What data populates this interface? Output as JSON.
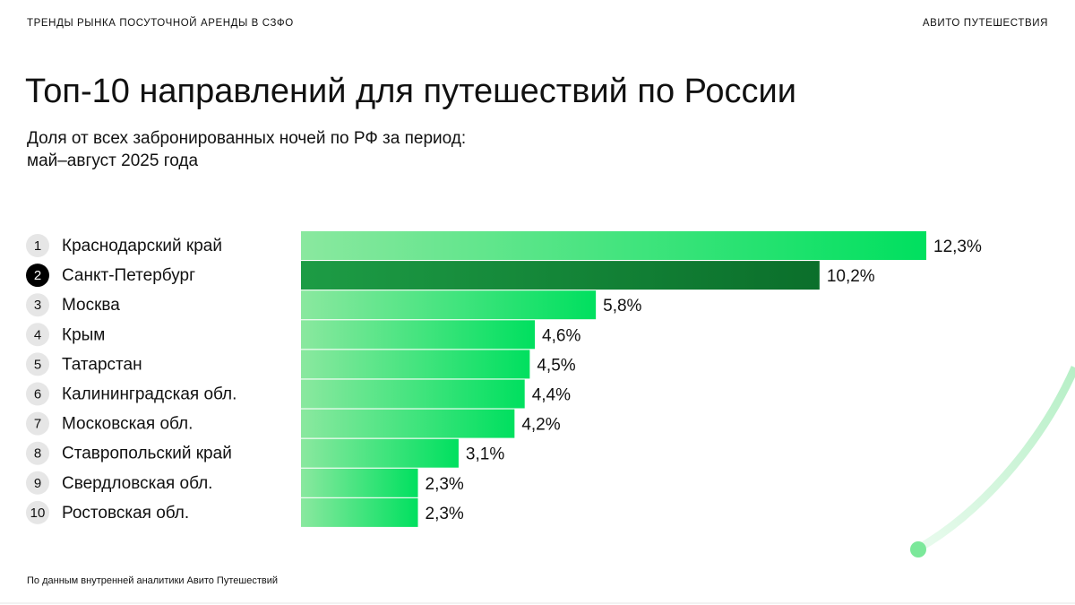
{
  "header": {
    "left": "ТРЕНДЫ РЫНКА ПОСУТОЧНОЙ АРЕНДЫ В СЗФО",
    "right": "АВИТО ПУТЕШЕСТВИЯ"
  },
  "chart_data": {
    "type": "bar",
    "orientation": "horizontal",
    "title": "Топ-10 направлений для путешествий по России",
    "subtitle": [
      "Доля от всех забронированных ночей по РФ за период:",
      "май–август 2025 года"
    ],
    "ranks": [
      "1",
      "2",
      "3",
      "4",
      "5",
      "6",
      "7",
      "8",
      "9",
      "10"
    ],
    "categories": [
      "Краснодарский край",
      "Санкт-Петербург",
      "Москва",
      "Крым",
      "Татарстан",
      "Калининградская обл.",
      "Московская обл.",
      "Ставропольский край",
      "Свердловская обл.",
      "Ростовская обл."
    ],
    "values": [
      12.3,
      10.2,
      5.8,
      4.6,
      4.5,
      4.4,
      4.2,
      3.1,
      2.3,
      2.3
    ],
    "value_labels": [
      "12,3%",
      "10,2%",
      "5,8%",
      "4,6%",
      "4,5%",
      "4,4%",
      "4,2%",
      "3,1%",
      "2,3%",
      "2,3%"
    ],
    "colors": [
      "#00e05f",
      "#0b6f2b",
      "#00e05f",
      "#00e05f",
      "#00e05f",
      "#00e05f",
      "#00e05f",
      "#00e05f",
      "#00e05f",
      "#00e05f"
    ],
    "xlim": [
      0,
      12.3
    ]
  },
  "footer": {
    "source": "По данным внутренней аналитики Авито Путешествий"
  }
}
